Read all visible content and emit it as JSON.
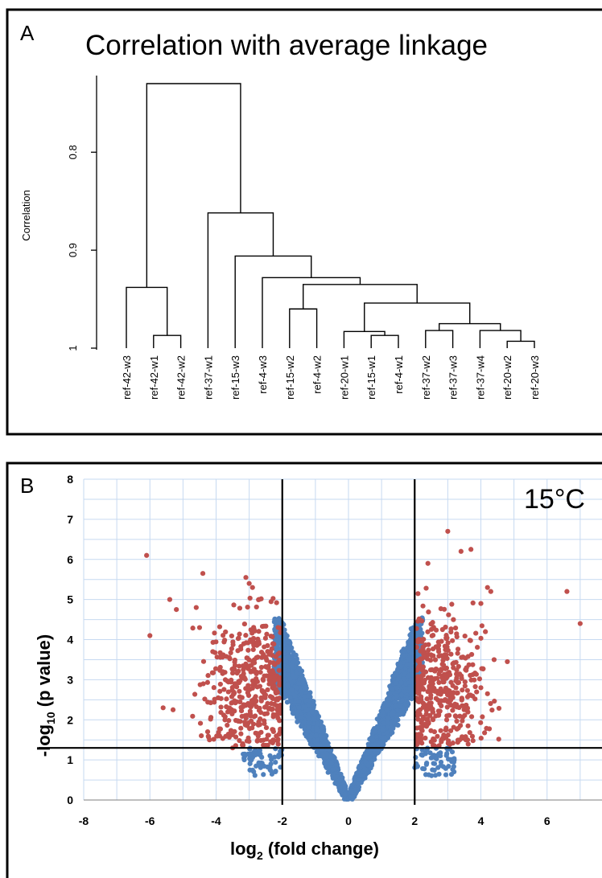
{
  "chart_data": [
    {
      "panel": "A",
      "type": "dendrogram",
      "title": "Correlation with average linkage",
      "ylabel": "Correlation",
      "yticks": [
        "0.8",
        "0.9",
        "1"
      ],
      "ylim": [
        0.73,
        1.0
      ],
      "y_reversed": true,
      "leaves": [
        "ref-42-w3",
        "ref-42-w1",
        "ref-42-w2",
        "ref-37-w1",
        "ref-15-w3",
        "ref-4-w3",
        "ref-15-w2",
        "ref-4-w2",
        "ref-20-w1",
        "ref-15-w1",
        "ref-4-w1",
        "ref-37-w2",
        "ref-37-w3",
        "ref-37-w4",
        "ref-20-w2",
        "ref-20-w3"
      ],
      "merges": [
        {
          "id": "n1",
          "left": 14,
          "right": 15,
          "height": 0.993
        },
        {
          "id": "n2",
          "left": 1,
          "right": 2,
          "height": 0.987
        },
        {
          "id": "n3",
          "left": 9,
          "right": 10,
          "height": 0.987
        },
        {
          "id": "n4",
          "left": 8,
          "right": "n3",
          "height": 0.983
        },
        {
          "id": "n5",
          "left": 11,
          "right": 12,
          "height": 0.982
        },
        {
          "id": "n6",
          "left": 13,
          "right": "n1",
          "height": 0.982
        },
        {
          "id": "n7",
          "left": 6,
          "right": 7,
          "height": 0.96
        },
        {
          "id": "n8",
          "left": "n5",
          "right": "n6",
          "height": 0.975
        },
        {
          "id": "n9",
          "left": "n4",
          "right": "n8",
          "height": 0.954
        },
        {
          "id": "n10",
          "left": "n7",
          "right": "n9",
          "height": 0.935
        },
        {
          "id": "n11",
          "left": 5,
          "right": "n10",
          "height": 0.928
        },
        {
          "id": "n12",
          "left": 0,
          "right": "n2",
          "height": 0.938
        },
        {
          "id": "n13",
          "left": 4,
          "right": "n11",
          "height": 0.906
        },
        {
          "id": "n14",
          "left": 3,
          "right": "n13",
          "height": 0.862
        },
        {
          "id": "n15",
          "left": "n12",
          "right": "n14",
          "height": 0.73
        }
      ]
    },
    {
      "panel": "B",
      "type": "scatter",
      "annotation": "15°C",
      "xlabel_main": "log",
      "xlabel_sub": "2",
      "xlabel_rest": " (fold change)",
      "ylabel_main": "-log",
      "ylabel_sub": "10",
      "ylabel_rest": " (p value)",
      "xlim": [
        -8,
        8
      ],
      "ylim": [
        0,
        8
      ],
      "xticks": [
        -8,
        -6,
        -4,
        -2,
        0,
        2,
        4,
        6
      ],
      "yticks": [
        0,
        1,
        2,
        3,
        4,
        5,
        6,
        7,
        8
      ],
      "grid": true,
      "threshold_lines": {
        "x": [
          -2,
          2
        ],
        "y": 1.3
      },
      "colors": {
        "significant": "#c0504d",
        "non_significant": "#4f81bd",
        "grid": "#c6d9f1"
      },
      "series": [
        {
          "values": "red points: |log2 FC| > 2 and -log10 p > 1.3",
          "points": [
            [
              -6.1,
              6.1
            ],
            [
              -6.0,
              4.1
            ],
            [
              -5.4,
              5.0
            ],
            [
              -5.2,
              4.75
            ],
            [
              -5.6,
              2.3
            ],
            [
              -5.3,
              2.25
            ],
            [
              -4.6,
              4.8
            ],
            [
              -4.4,
              5.65
            ],
            [
              -3.1,
              5.55
            ],
            [
              -3.0,
              5.4
            ],
            [
              -2.9,
              5.3
            ],
            [
              -2.7,
              5.0
            ],
            [
              -4.5,
              4.3
            ],
            [
              -4.1,
              3.7
            ],
            [
              -3.8,
              3.2
            ],
            [
              -4.2,
              1.5
            ],
            [
              -3.5,
              1.3
            ],
            [
              3.0,
              6.7
            ],
            [
              3.4,
              6.2
            ],
            [
              3.7,
              6.25
            ],
            [
              2.4,
              5.9
            ],
            [
              4.2,
              5.3
            ],
            [
              4.3,
              5.2
            ],
            [
              6.6,
              5.2
            ],
            [
              7.0,
              4.4
            ],
            [
              4.0,
              4.9
            ],
            [
              4.4,
              3.5
            ],
            [
              4.8,
              3.45
            ],
            [
              4.0,
              2.8
            ],
            [
              4.2,
              2.65
            ],
            [
              3.6,
              1.5
            ],
            [
              2.5,
              1.45
            ]
          ]
        }
      ]
    }
  ]
}
